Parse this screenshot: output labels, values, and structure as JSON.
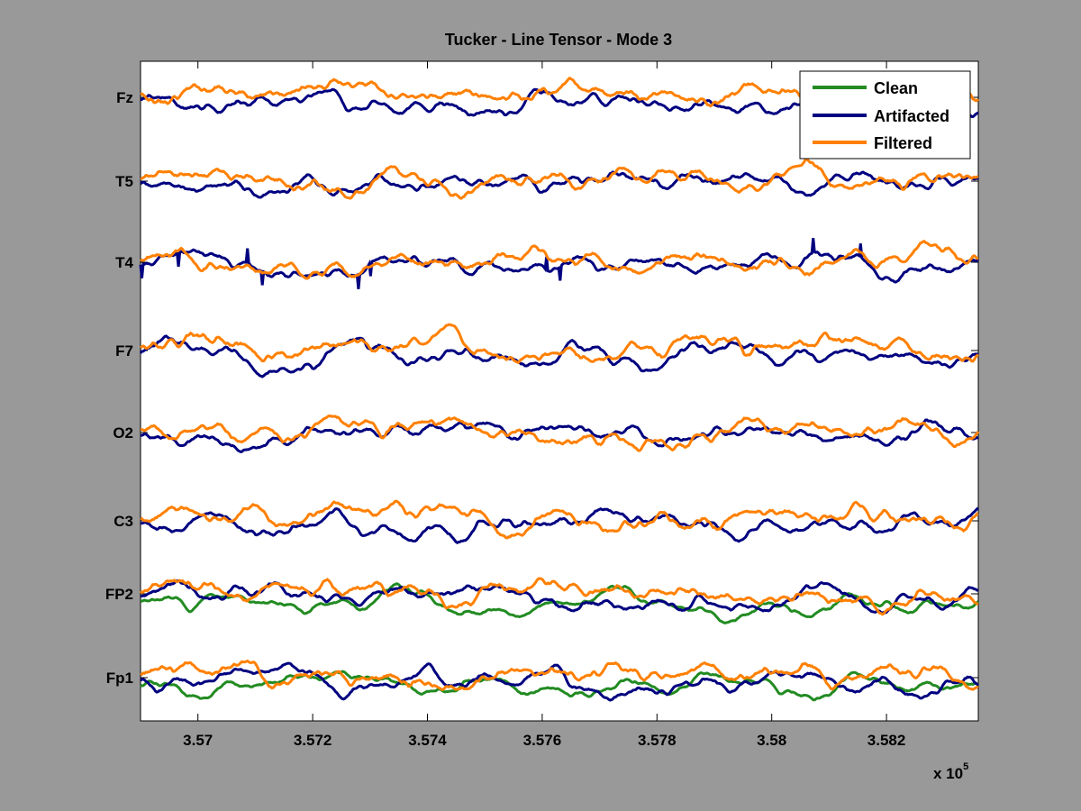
{
  "chart_data": {
    "type": "line",
    "title": "Tucker - Line Tensor - Mode 3",
    "xlabel": "",
    "ylabel": "",
    "x_exponent_label": "x 10",
    "x_exponent_power": "5",
    "xlim": [
      3.569,
      3.5836
    ],
    "x_ticks": [
      3.57,
      3.572,
      3.574,
      3.576,
      3.578,
      3.58,
      3.582
    ],
    "x_tick_labels": [
      "3.57",
      "3.572",
      "3.574",
      "3.576",
      "3.578",
      "3.58",
      "3.582"
    ],
    "channels": [
      "Fz",
      "T5",
      "T4",
      "F7",
      "O2",
      "C3",
      "FP2",
      "Fp1"
    ],
    "grid": false,
    "legend_position": "top-right",
    "series": [
      {
        "name": "Clean",
        "color": "#228B22",
        "channels": [
          "FP2",
          "Fp1"
        ]
      },
      {
        "name": "Artifacted",
        "color": "#000080",
        "channels": [
          "Fz",
          "T5",
          "T4",
          "F7",
          "O2",
          "C3",
          "FP2",
          "Fp1"
        ]
      },
      {
        "name": "Filtered",
        "color": "#FF8000",
        "channels": [
          "Fz",
          "T5",
          "T4",
          "F7",
          "O2",
          "C3",
          "FP2",
          "Fp1"
        ]
      }
    ]
  }
}
